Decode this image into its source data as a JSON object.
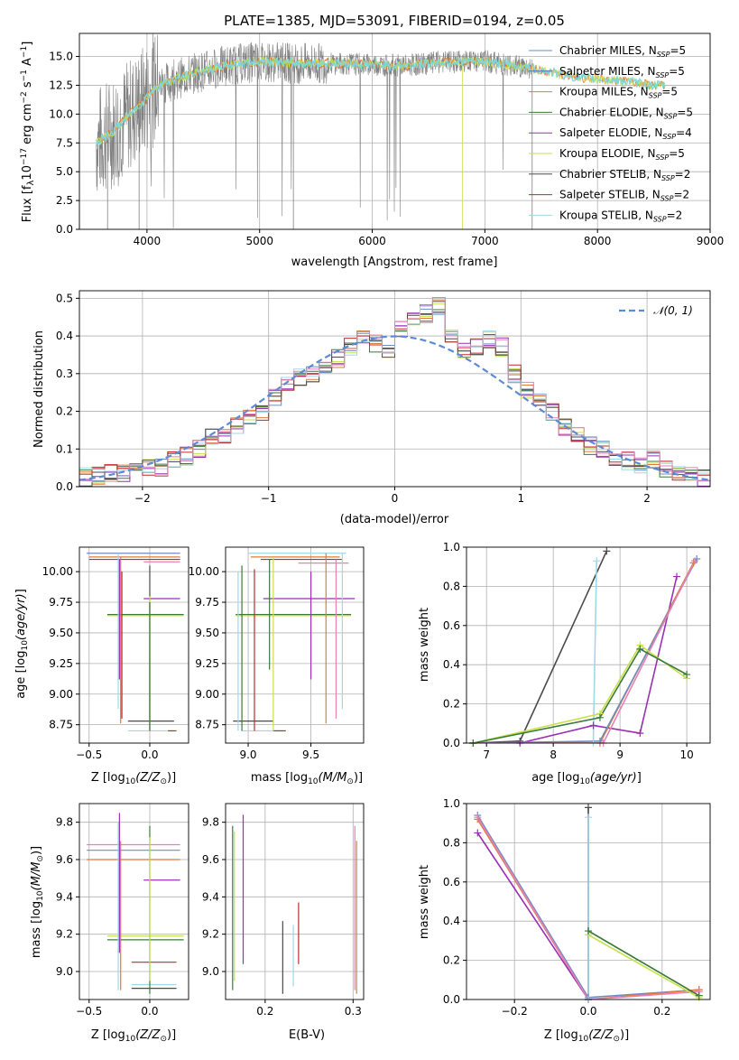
{
  "colors": {
    "chabrier_miles": "#6c8ebf",
    "salpeter_miles": "#4a6fb5",
    "kroupa_miles": "#e07b39",
    "chabrier_elodie": "#3a7a3a",
    "salpeter_elodie": "#9a2fb5",
    "kroupa_elodie": "#c8e04a",
    "chabrier_stelib": "#4a4a4a",
    "salpeter_stelib": "#c0282d",
    "kroupa_stelib": "#9fd8e8",
    "spectrum": "#808080",
    "spectrum_fit": "#7fd6d8",
    "gauss": "#5b8bd6",
    "pink": "#e87fb8"
  },
  "chart_data": [
    {
      "type": "line",
      "title": "PLATE=1385, MJD=53091, FIBERID=0194, z=0.05",
      "xlabel": "wavelength [Angstrom, rest frame]",
      "ylabel": "Flux [f",
      "xlim": [
        3400,
        9000
      ],
      "ylim": [
        0,
        17
      ],
      "xticks": [
        "4000",
        "5000",
        "6000",
        "7000",
        "8000",
        "9000"
      ],
      "yticks": [
        "0.0",
        "2.5",
        "5.0",
        "7.5",
        "10.0",
        "12.5",
        "15.0"
      ],
      "legend": {
        "placement": "upper-right",
        "entries": [
          {
            "name": "Chabrier MILES, N",
            "nssp": "=5"
          },
          {
            "name": "Salpeter MILES, N",
            "nssp": "=5"
          },
          {
            "name": "Kroupa MILES, N",
            "nssp": "=5"
          },
          {
            "name": "Chabrier ELODIE, N",
            "nssp": "=5"
          },
          {
            "name": "Salpeter ELODIE, N",
            "nssp": "=4"
          },
          {
            "name": "Kroupa ELODIE, N",
            "nssp": "=5"
          },
          {
            "name": "Chabrier STELIB, N",
            "nssp": "=2"
          },
          {
            "name": "Salpeter STELIB, N",
            "nssp": "=2"
          },
          {
            "name": "Kroupa STELIB, N",
            "nssp": "=2"
          }
        ]
      },
      "spectrum_knots": [
        [
          3550,
          7.5
        ],
        [
          3700,
          8.5
        ],
        [
          3900,
          10.5
        ],
        [
          4100,
          12.5
        ],
        [
          4400,
          13.5
        ],
        [
          4700,
          14.2
        ],
        [
          5000,
          14.6
        ],
        [
          5300,
          14.4
        ],
        [
          5600,
          14.4
        ],
        [
          6000,
          14.3
        ],
        [
          6300,
          14.2
        ],
        [
          6600,
          14.5
        ],
        [
          7000,
          14.6
        ],
        [
          7400,
          14.0
        ],
        [
          7800,
          13.2
        ],
        [
          8200,
          12.9
        ],
        [
          8500,
          12.5
        ]
      ]
    },
    {
      "type": "line",
      "xlabel": "(data-model)/error",
      "ylabel": "Normed distribution",
      "xlim": [
        -2.5,
        2.5
      ],
      "ylim": [
        0,
        0.52
      ],
      "xticks": [
        "−2",
        "−1",
        "0",
        "1",
        "2"
      ],
      "yticks": [
        "0.0",
        "0.1",
        "0.2",
        "0.3",
        "0.4",
        "0.5"
      ],
      "legend": {
        "placement": "upper-right",
        "entries": [
          "𝒩(0, 1)"
        ]
      },
      "hist_bins": [
        -2.5,
        -2.4,
        -2.3,
        -2.2,
        -2.1,
        -2.0,
        -1.9,
        -1.8,
        -1.7,
        -1.6,
        -1.5,
        -1.4,
        -1.3,
        -1.2,
        -1.1,
        -1.0,
        -0.9,
        -0.8,
        -0.7,
        -0.6,
        -0.5,
        -0.4,
        -0.3,
        -0.2,
        -0.1,
        0.0,
        0.1,
        0.2,
        0.3,
        0.4,
        0.5,
        0.6,
        0.7,
        0.8,
        0.9,
        1.0,
        1.1,
        1.2,
        1.3,
        1.4,
        1.5,
        1.6,
        1.7,
        1.8,
        1.9,
        2.0,
        2.1,
        2.2,
        2.3,
        2.4,
        2.5
      ],
      "hist_values": [
        0.025,
        0.03,
        0.035,
        0.035,
        0.04,
        0.05,
        0.05,
        0.07,
        0.08,
        0.1,
        0.13,
        0.13,
        0.16,
        0.18,
        0.2,
        0.24,
        0.27,
        0.29,
        0.3,
        0.32,
        0.34,
        0.37,
        0.39,
        0.38,
        0.36,
        0.42,
        0.44,
        0.46,
        0.48,
        0.4,
        0.36,
        0.37,
        0.39,
        0.37,
        0.3,
        0.26,
        0.24,
        0.2,
        0.16,
        0.14,
        0.11,
        0.1,
        0.08,
        0.07,
        0.06,
        0.07,
        0.05,
        0.04,
        0.03,
        0.025
      ]
    },
    {
      "type": "scatter",
      "xlabel": "Z [log",
      "ylabel": "age  [log",
      "xlim": [
        -0.58,
        0.32
      ],
      "ylim": [
        8.6,
        10.2
      ],
      "xticks": [
        "−0.5",
        "0.0"
      ],
      "yticks": [
        "8.75",
        "9.00",
        "9.25",
        "9.50",
        "9.75",
        "10.00"
      ],
      "segments_h": [
        [
          -0.52,
          0.25,
          10.15,
          "chabrier_miles"
        ],
        [
          -0.5,
          0.25,
          10.12,
          "kroupa_miles"
        ],
        [
          -0.5,
          0.25,
          10.1,
          "salpeter_stelib"
        ],
        [
          -0.05,
          0.25,
          10.08,
          "pink"
        ],
        [
          -0.05,
          0.25,
          9.78,
          "salpeter_elodie"
        ],
        [
          -0.35,
          0.28,
          9.65,
          "chabrier_elodie"
        ],
        [
          -0.35,
          0.28,
          9.64,
          "kroupa_elodie"
        ],
        [
          -0.18,
          0.2,
          8.78,
          "chabrier_stelib"
        ],
        [
          -0.18,
          0.2,
          8.7,
          "kroupa_stelib"
        ],
        [
          0.15,
          0.22,
          8.7,
          "salpeter_stelib"
        ]
      ],
      "segments_v": [
        [
          -0.26,
          8.88,
          10.15,
          "kroupa_stelib"
        ],
        [
          -0.24,
          8.76,
          10.12,
          "kroupa_miles"
        ],
        [
          -0.25,
          9.12,
          10.1,
          "salpeter_elodie"
        ],
        [
          -0.23,
          8.8,
          10.0,
          "salpeter_stelib"
        ],
        [
          0.0,
          8.7,
          10.05,
          "chabrier_stelib"
        ],
        [
          0.0,
          8.75,
          9.8,
          "kroupa_elodie"
        ],
        [
          0.0,
          8.7,
          9.75,
          "chabrier_elodie"
        ]
      ]
    },
    {
      "type": "scatter",
      "xlabel": "mass [log",
      "ylabel": "",
      "xlim": [
        8.82,
        9.92
      ],
      "ylim": [
        8.6,
        10.2
      ],
      "xticks": [
        "9.0",
        "9.5"
      ],
      "yticks": [
        "8.75",
        "9.00",
        "9.25",
        "9.50",
        "9.75",
        "10.00"
      ],
      "segments_h": [
        [
          9.0,
          9.78,
          10.15,
          "kroupa_stelib"
        ],
        [
          9.02,
          9.73,
          10.12,
          "kroupa_miles"
        ],
        [
          9.1,
          9.75,
          10.1,
          "salpeter_stelib"
        ],
        [
          9.4,
          9.8,
          10.07,
          "pink"
        ],
        [
          9.12,
          9.85,
          9.78,
          "salpeter_elodie"
        ],
        [
          8.9,
          9.82,
          9.65,
          "chabrier_elodie"
        ],
        [
          8.9,
          9.82,
          9.64,
          "kroupa_elodie"
        ],
        [
          8.88,
          9.2,
          8.78,
          "chabrier_stelib"
        ],
        [
          8.95,
          9.3,
          8.7,
          "kroupa_stelib"
        ],
        [
          9.2,
          9.3,
          8.7,
          "salpeter_stelib"
        ]
      ],
      "segments_v": [
        [
          8.92,
          8.7,
          10.0,
          "kroupa_stelib"
        ],
        [
          8.95,
          8.7,
          10.05,
          "chabrier_elodie"
        ],
        [
          9.05,
          8.7,
          10.02,
          "salpeter_stelib"
        ],
        [
          9.17,
          9.2,
          10.1,
          "chabrier_elodie"
        ],
        [
          9.2,
          8.7,
          10.12,
          "kroupa_elodie"
        ],
        [
          9.5,
          9.12,
          10.0,
          "salpeter_elodie"
        ],
        [
          9.62,
          8.76,
          10.15,
          "kroupa_miles"
        ],
        [
          9.7,
          8.8,
          10.1,
          "pink"
        ],
        [
          9.75,
          8.88,
          10.15,
          "kroupa_stelib"
        ]
      ]
    },
    {
      "type": "line",
      "xlabel": "age  [log",
      "ylabel": "mass weight",
      "xlim": [
        6.7,
        10.35
      ],
      "ylim": [
        0,
        1.0
      ],
      "xticks": [
        "7",
        "8",
        "9",
        "10"
      ],
      "yticks": [
        "0.0",
        "0.2",
        "0.4",
        "0.6",
        "0.8",
        "1.0"
      ],
      "series": [
        {
          "color": "chabrier_stelib",
          "x": [
            6.8,
            7.5,
            8.8
          ],
          "y": [
            0.0,
            0.01,
            0.98
          ]
        },
        {
          "color": "kroupa_stelib",
          "x": [
            6.8,
            8.6,
            8.65
          ],
          "y": [
            0.0,
            0.0,
            0.93
          ]
        },
        {
          "color": "salpeter_elodie",
          "x": [
            7.5,
            8.6,
            9.3,
            9.85
          ],
          "y": [
            0.0,
            0.09,
            0.05,
            0.85
          ]
        },
        {
          "color": "kroupa_miles",
          "x": [
            6.8,
            8.7,
            10.1
          ],
          "y": [
            0.0,
            0.0,
            0.92
          ]
        },
        {
          "color": "chabrier_miles",
          "x": [
            6.8,
            8.7,
            10.15
          ],
          "y": [
            0.0,
            0.01,
            0.94
          ]
        },
        {
          "color": "pink",
          "x": [
            6.8,
            8.75,
            10.12
          ],
          "y": [
            0.0,
            0.0,
            0.93
          ]
        },
        {
          "color": "kroupa_elodie",
          "x": [
            6.8,
            8.7,
            9.3,
            10.0
          ],
          "y": [
            0.0,
            0.15,
            0.5,
            0.33
          ]
        },
        {
          "color": "chabrier_elodie",
          "x": [
            6.8,
            8.7,
            9.3,
            10.0
          ],
          "y": [
            0.0,
            0.13,
            0.48,
            0.35
          ]
        }
      ]
    },
    {
      "type": "scatter",
      "xlabel": "Z [log",
      "ylabel": "mass [log",
      "xlim": [
        -0.58,
        0.32
      ],
      "ylim": [
        8.85,
        9.9
      ],
      "xticks": [
        "−0.5",
        "0.0"
      ],
      "yticks": [
        "9.0",
        "9.2",
        "9.4",
        "9.6",
        "9.8"
      ],
      "segments_h": [
        [
          -0.52,
          0.25,
          9.68,
          "pink"
        ],
        [
          -0.52,
          0.25,
          9.65,
          "chabrier_miles"
        ],
        [
          -0.52,
          0.25,
          9.6,
          "kroupa_miles"
        ],
        [
          -0.05,
          0.25,
          9.49,
          "salpeter_elodie"
        ],
        [
          -0.35,
          0.28,
          9.19,
          "kroupa_elodie"
        ],
        [
          -0.35,
          0.28,
          9.17,
          "chabrier_elodie"
        ],
        [
          -0.15,
          0.22,
          9.05,
          "salpeter_stelib"
        ],
        [
          -0.15,
          0.22,
          8.93,
          "kroupa_stelib"
        ],
        [
          -0.15,
          0.22,
          8.91,
          "chabrier_stelib"
        ]
      ],
      "segments_v": [
        [
          -0.26,
          8.9,
          9.8,
          "kroupa_stelib"
        ],
        [
          -0.24,
          8.9,
          9.7,
          "kroupa_miles"
        ],
        [
          -0.25,
          9.1,
          9.85,
          "salpeter_elodie"
        ],
        [
          0.0,
          8.88,
          9.78,
          "chabrier_elodie"
        ],
        [
          0.0,
          8.95,
          9.72,
          "kroupa_elodie"
        ]
      ]
    },
    {
      "type": "scatter",
      "xlabel": "E(B-V)",
      "ylabel": "",
      "xlim": [
        0.155,
        0.312
      ],
      "ylim": [
        8.85,
        9.9
      ],
      "xticks": [
        "0.2",
        "0.3"
      ],
      "yticks": [
        "9.0",
        "9.2",
        "9.4",
        "9.6",
        "9.8"
      ],
      "segments_v": [
        [
          0.163,
          8.9,
          9.78,
          "chabrier_elodie"
        ],
        [
          0.165,
          8.95,
          9.75,
          "kroupa_elodie"
        ],
        [
          0.175,
          9.04,
          9.84,
          "salpeter_elodie"
        ],
        [
          0.22,
          8.88,
          9.27,
          "chabrier_stelib"
        ],
        [
          0.232,
          8.92,
          9.25,
          "kroupa_stelib"
        ],
        [
          0.238,
          9.04,
          9.37,
          "salpeter_stelib"
        ],
        [
          0.302,
          8.9,
          9.78,
          "pink"
        ],
        [
          0.304,
          8.88,
          9.7,
          "kroupa_miles"
        ]
      ]
    },
    {
      "type": "line",
      "xlabel": "Z [log",
      "ylabel": "mass weight",
      "xlim": [
        -0.33,
        0.33
      ],
      "ylim": [
        0,
        1.0
      ],
      "xticks": [
        "−0.2",
        "0.0",
        "0.2"
      ],
      "yticks": [
        "0.0",
        "0.2",
        "0.4",
        "0.6",
        "0.8",
        "1.0"
      ],
      "series": [
        {
          "color": "chabrier_miles",
          "x": [
            -0.3,
            0.0,
            0.3
          ],
          "y": [
            0.94,
            0.01,
            0.05
          ]
        },
        {
          "color": "kroupa_miles",
          "x": [
            -0.3,
            0.0,
            0.3
          ],
          "y": [
            0.92,
            0.0,
            0.05
          ]
        },
        {
          "color": "salpeter_elodie",
          "x": [
            -0.3,
            0.0
          ],
          "y": [
            0.85,
            0.0
          ]
        },
        {
          "color": "pink",
          "x": [
            -0.3,
            0.0,
            0.3
          ],
          "y": [
            0.93,
            0.0,
            0.04
          ]
        },
        {
          "color": "kroupa_elodie",
          "x": [
            0.0,
            0.3
          ],
          "y": [
            0.33,
            0.01
          ]
        },
        {
          "color": "chabrier_elodie",
          "x": [
            0.0,
            0.3
          ],
          "y": [
            0.35,
            0.02
          ]
        },
        {
          "color": "chabrier_stelib",
          "x": [
            0.0,
            0.0
          ],
          "y": [
            0.0,
            0.98
          ]
        },
        {
          "color": "kroupa_stelib",
          "x": [
            0.0,
            0.0
          ],
          "y": [
            0.0,
            0.93
          ]
        }
      ]
    }
  ]
}
